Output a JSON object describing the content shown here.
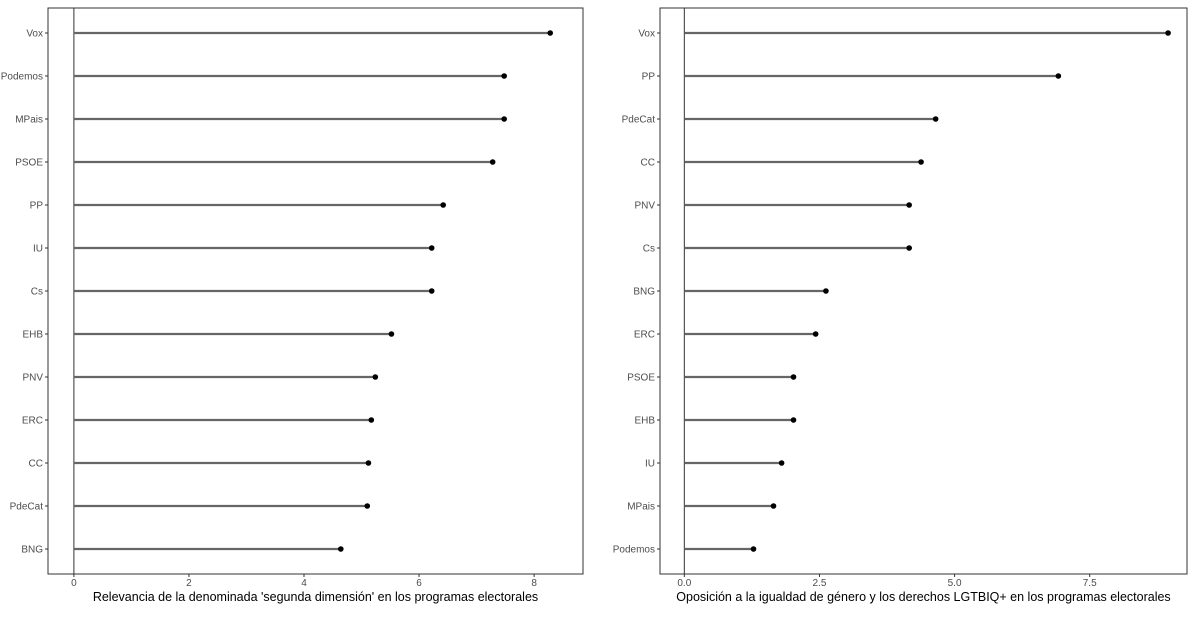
{
  "chart_data": [
    {
      "type": "lollipop",
      "title": "",
      "xlabel": "Relevancia de la denominada 'segunda dimensión' en los programas electorales",
      "ylabel": "",
      "xlim": [
        -0.45,
        8.85
      ],
      "xticks": [
        0,
        2,
        4,
        6,
        8
      ],
      "xtick_labels": [
        "0",
        "2",
        "4",
        "6",
        "8"
      ],
      "grid": false,
      "legend": "none",
      "categories": [
        "Vox",
        "Podemos",
        "MPais",
        "PSOE",
        "PP",
        "IU",
        "Cs",
        "EHB",
        "PNV",
        "ERC",
        "CC",
        "PdeCat",
        "BNG"
      ],
      "values": [
        8.28,
        7.48,
        7.48,
        7.28,
        6.42,
        6.22,
        6.22,
        5.52,
        5.24,
        5.17,
        5.12,
        5.1,
        4.64
      ]
    },
    {
      "type": "lollipop",
      "title": "",
      "xlabel": "Oposición a la igualdad de género y los derechos LGTBIQ+ en los programas electorales",
      "ylabel": "",
      "xlim": [
        -0.45,
        9.3
      ],
      "xticks": [
        0,
        2.5,
        5,
        7.5
      ],
      "xtick_labels": [
        "0.0",
        "2.5",
        "5.0",
        "7.5"
      ],
      "grid": false,
      "legend": "none",
      "categories": [
        "Vox",
        "PP",
        "PdeCat",
        "CC",
        "PNV",
        "Cs",
        "BNG",
        "ERC",
        "PSOE",
        "EHB",
        "IU",
        "MPais",
        "Podemos"
      ],
      "values": [
        8.95,
        6.92,
        4.65,
        4.38,
        4.16,
        4.16,
        2.62,
        2.43,
        2.02,
        2.02,
        1.8,
        1.65,
        1.28
      ]
    }
  ],
  "colors": {
    "stem": "#666666",
    "point": "#000000",
    "axis": "#333333",
    "tick_text": "#4d4d4d"
  }
}
